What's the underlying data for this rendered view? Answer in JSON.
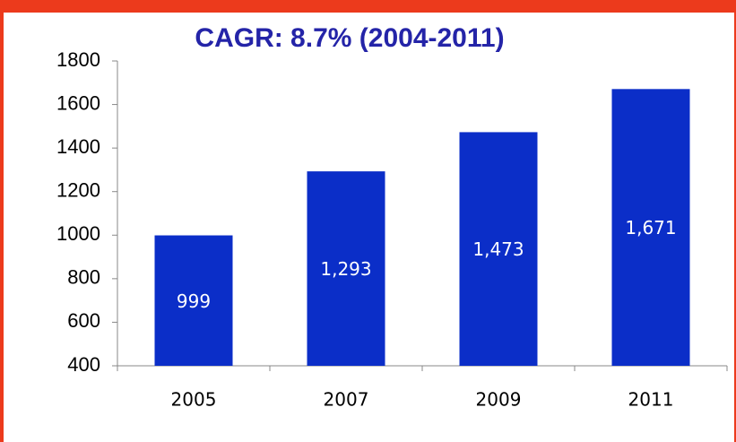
{
  "chart_data": {
    "type": "bar",
    "title": "CAGR: 8.7% (2004-2011)",
    "categories": [
      "2005",
      "2007",
      "2009",
      "2011"
    ],
    "values": [
      999,
      1293,
      1473,
      1671
    ],
    "value_labels": [
      "999",
      "1,293",
      "1,473",
      "1,671"
    ],
    "color": "#0b2ec8",
    "ylim": [
      400,
      1800
    ],
    "yticks": [
      400,
      600,
      800,
      1000,
      1200,
      1400,
      1600,
      1800
    ],
    "grid": false
  }
}
